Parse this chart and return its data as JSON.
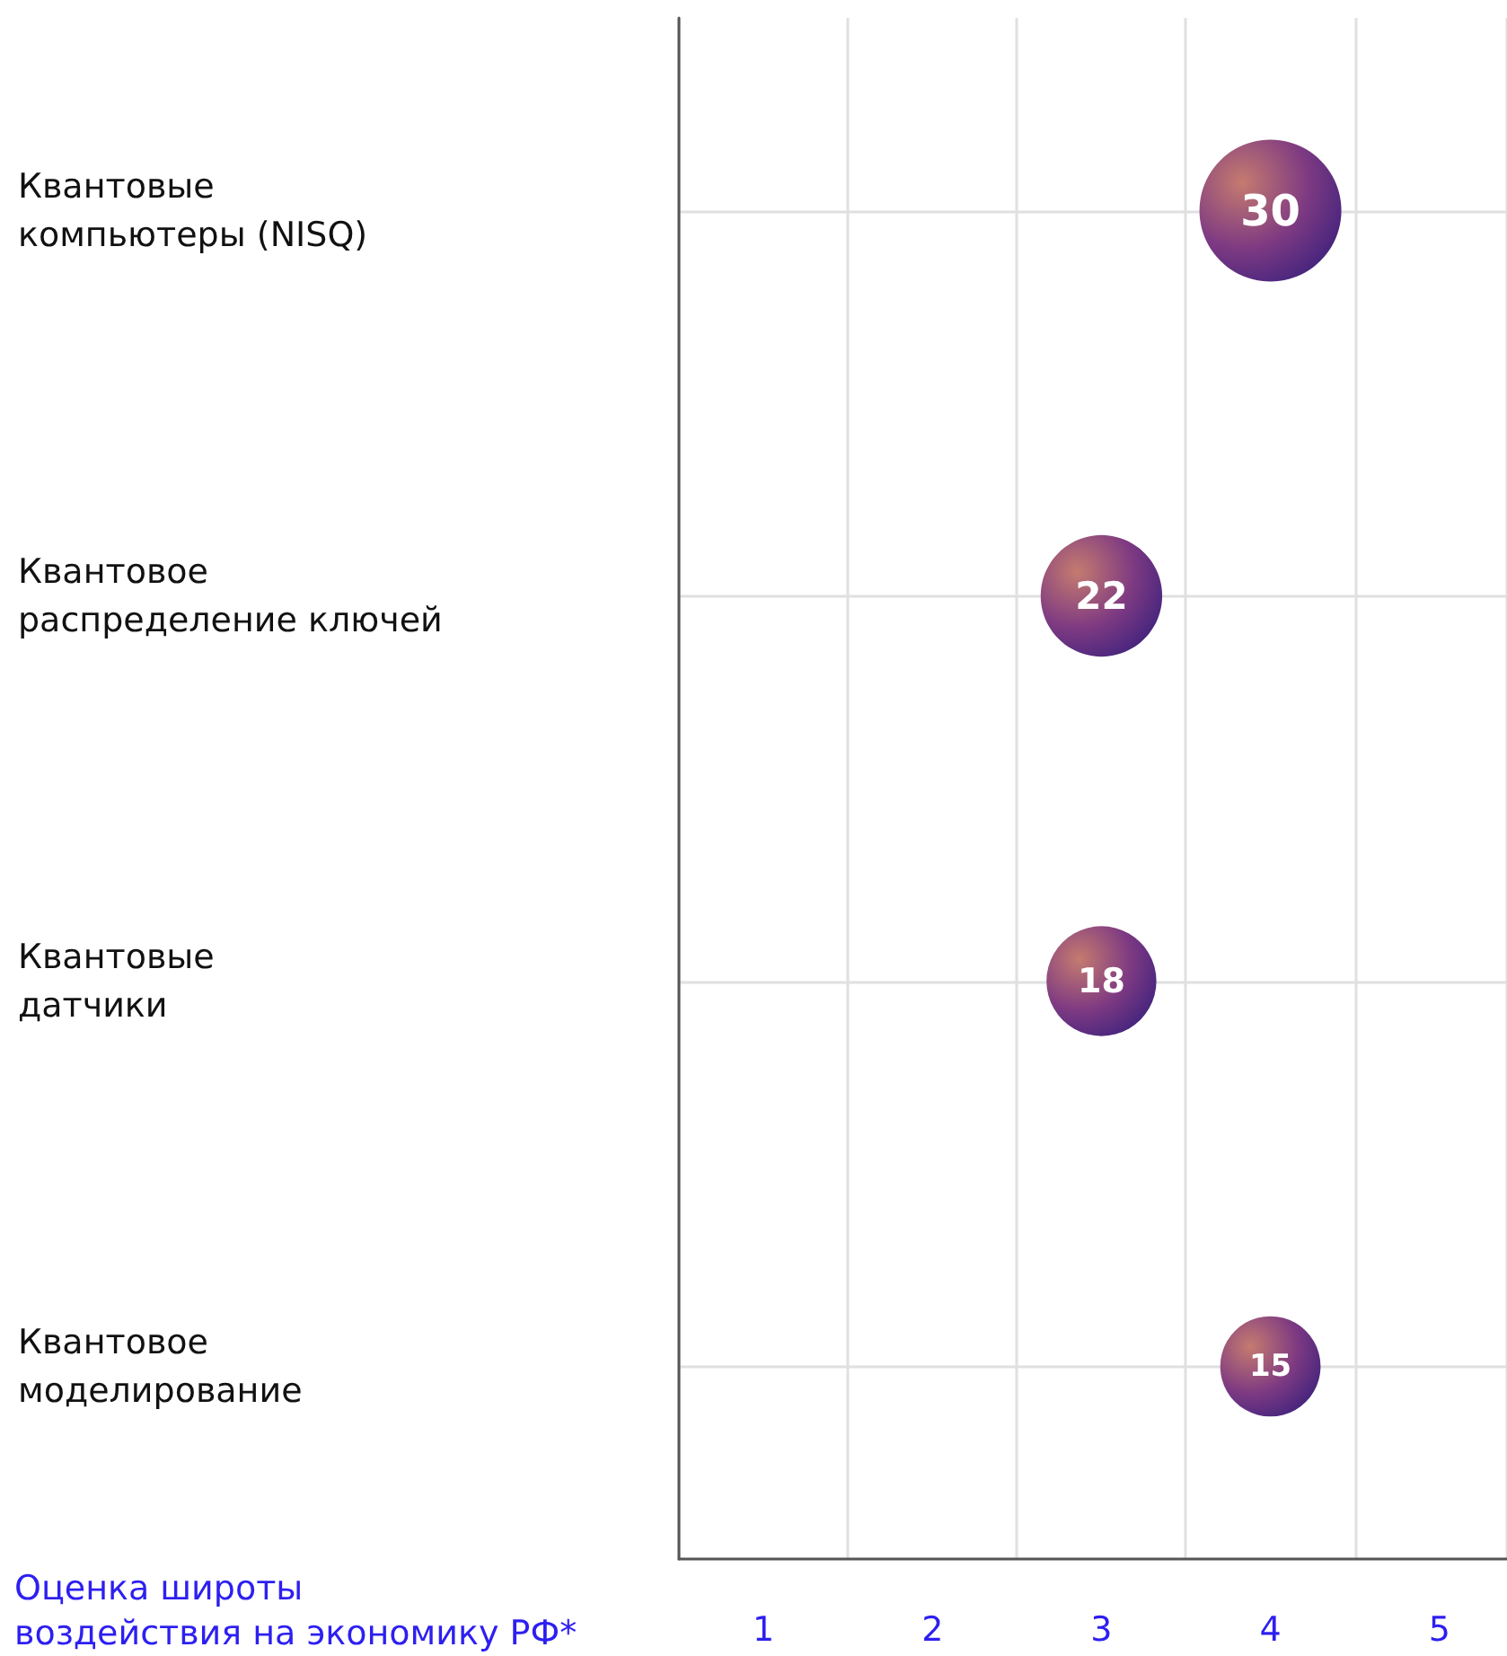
{
  "chart_data": {
    "type": "bubble",
    "orientation": "horizontal",
    "categories": [
      "Квантовые компьютеры (NISQ)",
      "Квантовое распределение ключей",
      "Квантовые датчики",
      "Квантовое моделирование"
    ],
    "values": [
      4,
      3,
      3,
      4
    ],
    "sizes": [
      30,
      22,
      18,
      15
    ],
    "value_labels": [
      "30",
      "22",
      "18",
      "15"
    ],
    "color": "#7e3a82",
    "xlabel": "Оценка широты\nвоздействия на экономику РФ*",
    "xlim": [
      0.5,
      5.4
    ],
    "xticks": [
      1,
      2,
      3,
      4,
      5
    ],
    "grid": true,
    "marker": "circle"
  }
}
